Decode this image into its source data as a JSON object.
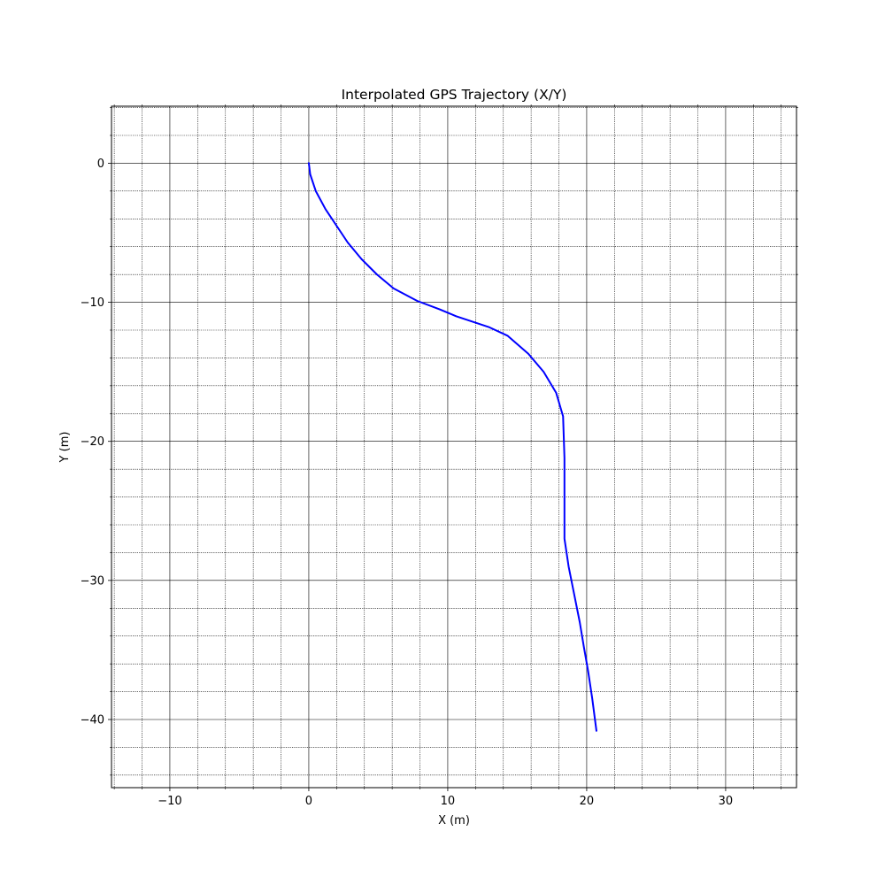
{
  "chart_data": {
    "type": "line",
    "title": "Interpolated GPS Trajectory (X/Y)",
    "xlabel": "X (m)",
    "ylabel": "Y (m)",
    "xlim": [
      -14.2,
      35.1
    ],
    "ylim": [
      -44.9,
      4.1
    ],
    "x_ticks": [
      -10,
      0,
      10,
      20,
      30
    ],
    "y_ticks": [
      0,
      -10,
      -20,
      -30,
      -40
    ],
    "x_tick_labels": [
      "−10",
      "0",
      "10",
      "20",
      "30"
    ],
    "y_tick_labels": [
      "0",
      "−10",
      "−20",
      "−30",
      "−40"
    ],
    "minor_step": 2,
    "grid": {
      "major": true,
      "minor": true
    },
    "series": [
      {
        "color": "#0000ff",
        "x": [
          0.0,
          0.1,
          0.5,
          1.2,
          2.0,
          2.8,
          3.8,
          4.9,
          6.1,
          7.8,
          9.4,
          10.6,
          11.8,
          13.0,
          14.3,
          15.8,
          16.9,
          17.8,
          18.3,
          18.4,
          18.4,
          18.4,
          18.4,
          18.7,
          19.1,
          19.5,
          19.8,
          20.1,
          20.4,
          20.7
        ],
        "y": [
          0.0,
          -0.8,
          -2.0,
          -3.3,
          -4.5,
          -5.7,
          -6.9,
          -8.0,
          -9.0,
          -9.9,
          -10.5,
          -11.0,
          -11.4,
          -11.8,
          -12.4,
          -13.7,
          -15.0,
          -16.5,
          -18.2,
          -21.2,
          -23.8,
          -26.0,
          -27.0,
          -29.0,
          -31.0,
          -33.0,
          -34.8,
          -36.5,
          -38.5,
          -40.8
        ]
      }
    ]
  }
}
